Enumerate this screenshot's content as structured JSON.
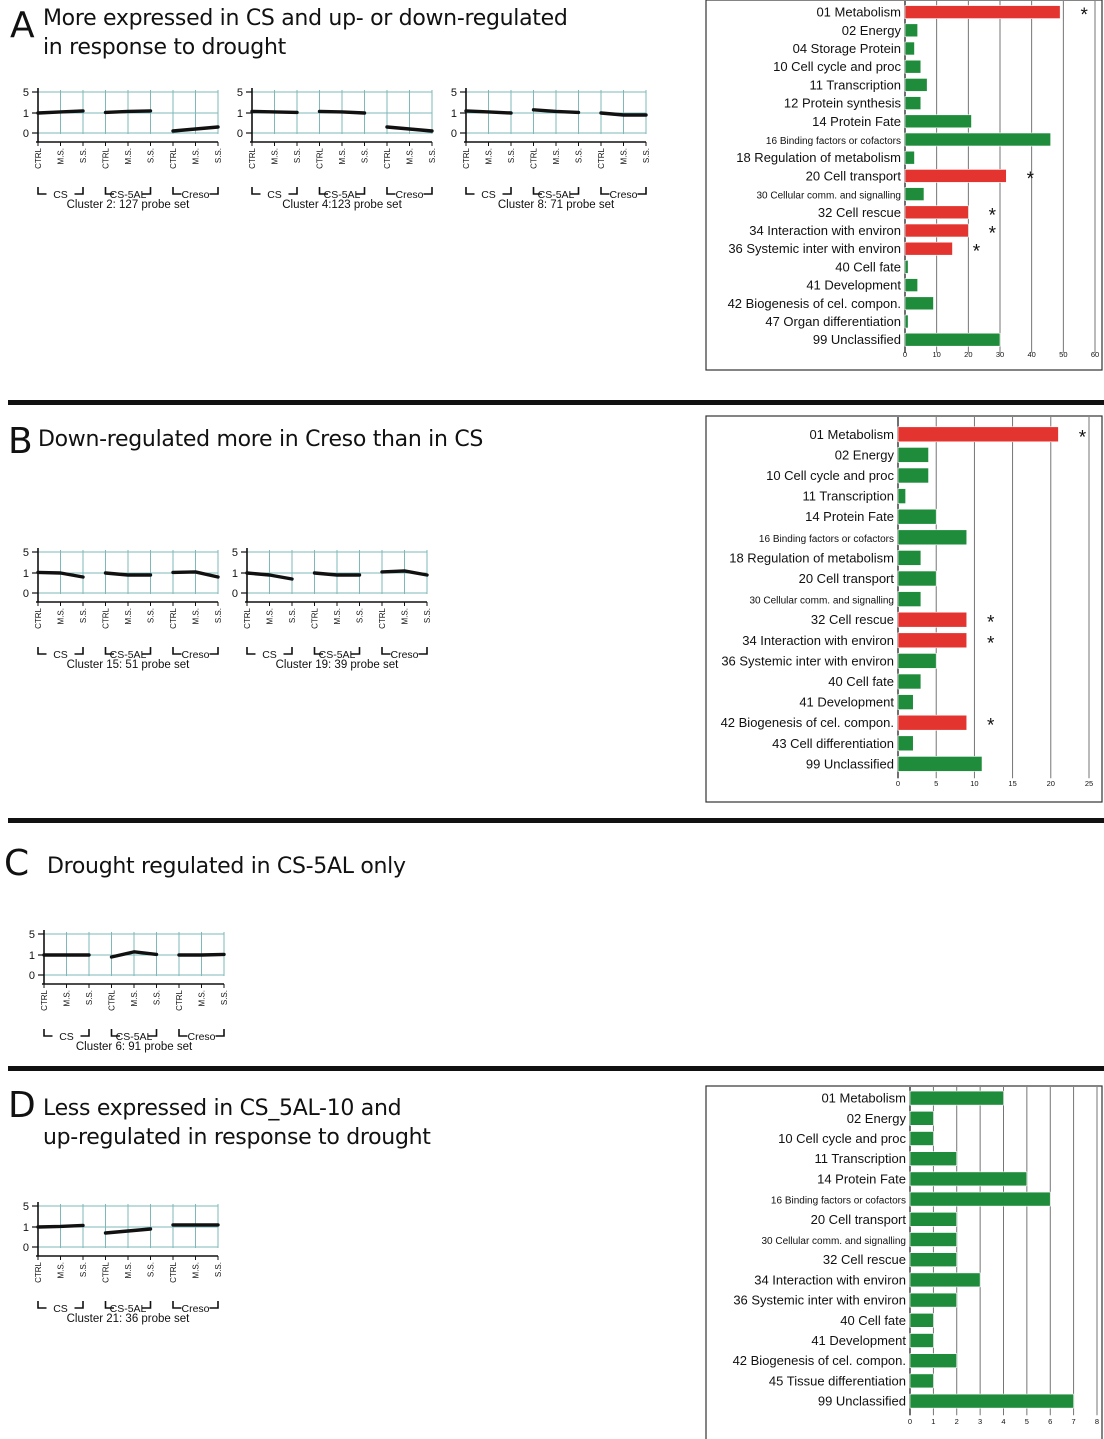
{
  "panels": [
    {
      "letter": "A",
      "heading_lines": [
        "More expressed in CS and up- or down-regulated",
        "in response to drought"
      ],
      "clusters": [
        {
          "label": "Cluster 2: 127 probe set",
          "values": [
            [
              1.0,
              1.2,
              1.4
            ],
            [
              1.1,
              1.3,
              1.4
            ],
            [
              0.1,
              0.2,
              0.3
            ]
          ]
        },
        {
          "label": "Cluster 4:123 probe set",
          "values": [
            [
              1.3,
              1.2,
              1.1
            ],
            [
              1.3,
              1.2,
              1.0
            ],
            [
              0.3,
              0.2,
              0.1
            ]
          ]
        },
        {
          "label": "Cluster 8: 71 probe set",
          "values": [
            [
              1.4,
              1.2,
              1.0
            ],
            [
              1.6,
              1.3,
              1.1
            ],
            [
              1.0,
              0.9,
              0.9
            ]
          ]
        }
      ]
    },
    {
      "letter": "B",
      "heading_lines": [
        "Down-regulated more in Creso than in CS"
      ],
      "clusters": [
        {
          "label": "Cluster 15: 51 probe set",
          "values": [
            [
              1.1,
              1.0,
              0.8
            ],
            [
              1.0,
              0.9,
              0.9
            ],
            [
              1.1,
              1.2,
              0.8
            ]
          ]
        },
        {
          "label": "Cluster 19: 39 probe set",
          "values": [
            [
              1.0,
              0.9,
              0.7
            ],
            [
              1.0,
              0.9,
              0.9
            ],
            [
              1.2,
              1.4,
              0.9
            ]
          ]
        }
      ]
    },
    {
      "letter": "C",
      "heading_lines": [
        "Drought regulated in CS-5AL only"
      ],
      "clusters": [
        {
          "label": "Cluster 6: 91 probe set",
          "values": [
            [
              1.0,
              1.0,
              1.0
            ],
            [
              0.9,
              1.6,
              1.1
            ],
            [
              1.0,
              1.0,
              1.1
            ]
          ]
        }
      ]
    },
    {
      "letter": "D",
      "heading_lines": [
        "Less expressed in CS_5AL-10 and",
        "up-regulated in response to drought"
      ],
      "clusters": [
        {
          "label": "Cluster 21: 36 probe set",
          "values": [
            [
              1.0,
              1.1,
              1.3
            ],
            [
              0.7,
              0.8,
              0.9
            ],
            [
              1.4,
              1.4,
              1.4
            ]
          ]
        }
      ]
    }
  ],
  "mini_axis": {
    "y_ticks": [
      "5",
      "1",
      "0"
    ],
    "x_ticks": [
      "CTRL",
      "M.S.",
      "S.S."
    ],
    "groups": [
      "CS",
      "CS-5AL",
      "Creso"
    ]
  },
  "chart_data": [
    {
      "type": "bar",
      "panel": "A",
      "xlim": [
        0,
        60
      ],
      "x_ticks": [
        "0",
        "10",
        "20",
        "30",
        "40",
        "50",
        "60"
      ],
      "categories": [
        "01 Metabolism",
        "02 Energy",
        "04 Storage Protein",
        "10 Cell cycle and proc",
        "11 Transcription",
        "12 Protein synthesis",
        "14 Protein Fate",
        "16 Binding factors or cofactors",
        "18 Regulation of metabolism",
        "20 Cell transport",
        "30 Cellular comm. and signalling",
        "32 Cell rescue",
        "34 Interaction with environ",
        "36 Systemic inter with environ",
        "40 Cell fate",
        "41 Development",
        "42 Biogenesis of cel. compon.",
        "47 Organ differentiation",
        "99 Unclassified"
      ],
      "values": [
        49,
        4,
        3,
        5,
        7,
        5,
        21,
        46,
        3,
        32,
        6,
        20,
        20,
        15,
        1,
        4,
        9,
        1,
        30
      ],
      "significant": [
        true,
        false,
        false,
        false,
        false,
        false,
        false,
        false,
        false,
        true,
        false,
        true,
        true,
        true,
        false,
        false,
        false,
        false,
        false
      ],
      "small_label": [
        false,
        false,
        false,
        false,
        false,
        false,
        false,
        true,
        false,
        false,
        true,
        false,
        false,
        false,
        false,
        false,
        false,
        false,
        false
      ],
      "star": "*",
      "colors": {
        "significant": "#e3342f",
        "other": "#1e8c3a"
      }
    },
    {
      "type": "bar",
      "panel": "B",
      "xlim": [
        0,
        25
      ],
      "x_ticks": [
        "0",
        "5",
        "10",
        "15",
        "20",
        "25"
      ],
      "categories": [
        "01 Metabolism",
        "02 Energy",
        "10 Cell cycle and proc",
        "11 Transcription",
        "14 Protein Fate",
        "16 Binding factors or cofactors",
        "18 Regulation of metabolism",
        "20 Cell transport",
        "30 Cellular comm. and signalling",
        "32 Cell rescue",
        "34 Interaction with environ",
        "36 Systemic inter with environ",
        "40 Cell fate",
        "41 Development",
        "42 Biogenesis of cel. compon.",
        "43 Cell differentiation",
        "99 Unclassified"
      ],
      "values": [
        21,
        4,
        4,
        1,
        5,
        9,
        3,
        5,
        3,
        9,
        9,
        5,
        3,
        2,
        9,
        2,
        11
      ],
      "significant": [
        true,
        false,
        false,
        false,
        false,
        false,
        false,
        false,
        false,
        true,
        true,
        false,
        false,
        false,
        true,
        false,
        false
      ],
      "small_label": [
        false,
        false,
        false,
        false,
        false,
        true,
        false,
        false,
        true,
        false,
        false,
        false,
        false,
        false,
        false,
        false,
        false
      ],
      "star": "*",
      "colors": {
        "significant": "#e3342f",
        "other": "#1e8c3a"
      }
    },
    {
      "type": "bar",
      "panel": "D",
      "xlim": [
        0,
        8
      ],
      "x_ticks": [
        "0",
        "1",
        "2",
        "3",
        "4",
        "5",
        "6",
        "7",
        "8"
      ],
      "categories": [
        "01 Metabolism",
        "02 Energy",
        "10 Cell cycle and proc",
        "11 Transcription",
        "14 Protein Fate",
        "16 Binding factors or cofactors",
        "20 Cell transport",
        "30 Cellular comm. and signalling",
        "32 Cell rescue",
        "34 Interaction with environ",
        "36 Systemic inter with environ",
        "40 Cell fate",
        "41 Development",
        "42 Biogenesis of cel. compon.",
        "45 Tissue differentiation",
        "99 Unclassified"
      ],
      "values": [
        4,
        1,
        1,
        2,
        5,
        6,
        2,
        2,
        2,
        3,
        2,
        1,
        1,
        2,
        1,
        7
      ],
      "significant": [
        false,
        false,
        false,
        false,
        false,
        false,
        false,
        false,
        false,
        false,
        false,
        false,
        false,
        false,
        false,
        false
      ],
      "small_label": [
        false,
        false,
        false,
        false,
        false,
        true,
        false,
        true,
        false,
        false,
        false,
        false,
        false,
        false,
        false,
        false
      ],
      "star": "*",
      "colors": {
        "significant": "#e3342f",
        "other": "#1e8c3a"
      }
    }
  ]
}
